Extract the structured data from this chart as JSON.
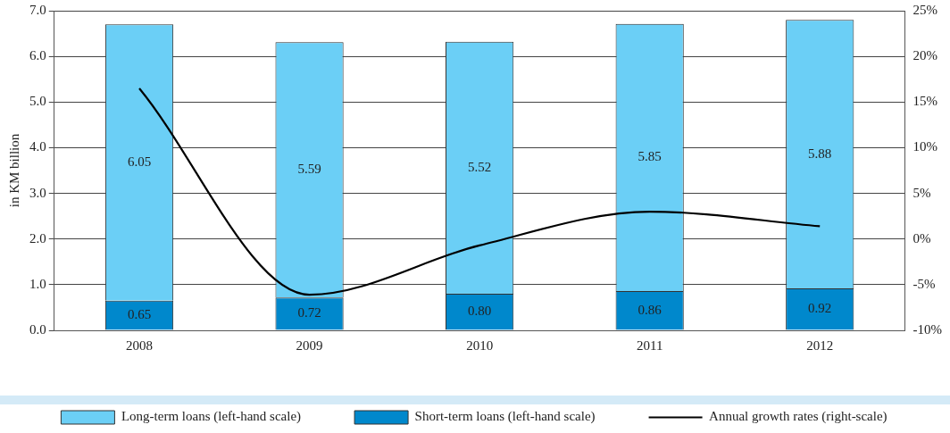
{
  "chart_data": {
    "type": "bar",
    "ylabel": "in KM billion",
    "categories": [
      "2008",
      "2009",
      "2010",
      "2011",
      "2012"
    ],
    "stacked": true,
    "series": [
      {
        "name": "Short-term loans (left-hand scale)",
        "color": "#0088cc",
        "values": [
          0.65,
          0.72,
          0.8,
          0.86,
          0.92
        ],
        "value_labels": [
          "0.65",
          "0.72",
          "0.80",
          "0.86",
          "0.92"
        ]
      },
      {
        "name": "Long-term loans (left-hand scale)",
        "color": "#6bcff6",
        "values": [
          6.05,
          5.59,
          5.52,
          5.85,
          5.88
        ],
        "value_labels": [
          "6.05",
          "5.59",
          "5.52",
          "5.85",
          "5.88"
        ]
      },
      {
        "name": "Annual growth rates (right-scale)",
        "type": "line",
        "axis": "y2",
        "color": "#000000",
        "values": [
          16.5,
          -6.1,
          -0.7,
          3.0,
          1.4
        ]
      }
    ],
    "ylim": [
      0,
      7
    ],
    "yticks": [
      {
        "value": 0,
        "label": "0.0"
      },
      {
        "value": 1,
        "label": "1.0"
      },
      {
        "value": 2,
        "label": "2.0"
      },
      {
        "value": 3,
        "label": "3.0"
      },
      {
        "value": 4,
        "label": "4.0"
      },
      {
        "value": 5,
        "label": "5.0"
      },
      {
        "value": 6,
        "label": "6.0"
      },
      {
        "value": 7,
        "label": "7.0"
      }
    ],
    "y2lim": [
      -10,
      25
    ],
    "y2ticks": [
      {
        "value": -10,
        "label": "-10%"
      },
      {
        "value": -5,
        "label": "-5%"
      },
      {
        "value": 0,
        "label": "0%"
      },
      {
        "value": 5,
        "label": "5%"
      },
      {
        "value": 10,
        "label": "10%"
      },
      {
        "value": 15,
        "label": "15%"
      },
      {
        "value": 20,
        "label": "20%"
      },
      {
        "value": 25,
        "label": "25%"
      }
    ],
    "grid": "y",
    "legend": "bottom",
    "marker": "none",
    "line_style": "solid"
  }
}
